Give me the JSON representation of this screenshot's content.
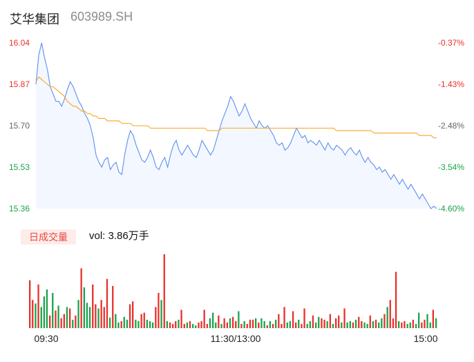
{
  "header": {
    "name": "艾华集团",
    "code": "603989.SH"
  },
  "volume_panel": {
    "tab_label": "日成交量",
    "vol_text": "vol: 3.86万手"
  },
  "colors": {
    "up": "#e8302a",
    "down": "#1aa34a",
    "price_line": "#5b8ff0",
    "avg_line": "#f5a623",
    "area": "#f3f7ff"
  },
  "chart_data": [
    {
      "type": "line",
      "x_tick_labels": [
        "09:30",
        "11:30/13:00",
        "15:00"
      ],
      "y_tick_labels": [
        "16.04",
        "15.87",
        "15.70",
        "15.53",
        "15.36"
      ],
      "y_right_tick_labels": [
        "-0.37%",
        "-1.43%",
        "-2.48%",
        "-3.54%",
        "-4.60%"
      ],
      "ylim": [
        15.36,
        16.04
      ],
      "series": [
        {
          "values": [
            15.87,
            15.99,
            16.04,
            15.98,
            15.93,
            15.86,
            15.83,
            15.8,
            15.8,
            15.78,
            15.81,
            15.85,
            15.88,
            15.86,
            15.83,
            15.8,
            15.78,
            15.75,
            15.73,
            15.7,
            15.65,
            15.58,
            15.55,
            15.53,
            15.56,
            15.57,
            15.52,
            15.54,
            15.55,
            15.51,
            15.5,
            15.58,
            15.64,
            15.68,
            15.66,
            15.62,
            15.59,
            15.56,
            15.55,
            15.57,
            15.6,
            15.57,
            15.53,
            15.52,
            15.55,
            15.57,
            15.53,
            15.58,
            15.62,
            15.64,
            15.6,
            15.58,
            15.6,
            15.62,
            15.6,
            15.58,
            15.57,
            15.6,
            15.64,
            15.62,
            15.6,
            15.58,
            15.6,
            15.64,
            15.68,
            15.72,
            15.75,
            15.78,
            15.82,
            15.8,
            15.77,
            15.74,
            15.76,
            15.79,
            15.76,
            15.73,
            15.71,
            15.69,
            15.72,
            15.7,
            15.69,
            15.7,
            15.68,
            15.66,
            15.63,
            15.62,
            15.63,
            15.6,
            15.61,
            15.63,
            15.66,
            15.69,
            15.67,
            15.65,
            15.66,
            15.63,
            15.64,
            15.63,
            15.62,
            15.64,
            15.62,
            15.6,
            15.63,
            15.61,
            15.6,
            15.62,
            15.61,
            15.6,
            15.58,
            15.6,
            15.61,
            15.59,
            15.58,
            15.6,
            15.57,
            15.55,
            15.57,
            15.55,
            15.54,
            15.52,
            15.53,
            15.51,
            15.52,
            15.5,
            15.48,
            15.5,
            15.48,
            15.46,
            15.48,
            15.46,
            15.44,
            15.46,
            15.44,
            15.42,
            15.4,
            15.42,
            15.4,
            15.38,
            15.36,
            15.37,
            15.36
          ]
        },
        {
          "values": [
            15.88,
            15.9,
            15.89,
            15.88,
            15.87,
            15.86,
            15.86,
            15.85,
            15.84,
            15.83,
            15.82,
            15.8,
            15.79,
            15.78,
            15.78,
            15.77,
            15.76,
            15.76,
            15.75,
            15.75,
            15.74,
            15.74,
            15.73,
            15.73,
            15.73,
            15.72,
            15.72,
            15.72,
            15.72,
            15.72,
            15.71,
            15.71,
            15.71,
            15.71,
            15.7,
            15.7,
            15.7,
            15.7,
            15.7,
            15.7,
            15.69,
            15.69,
            15.69,
            15.69,
            15.69,
            15.69,
            15.69,
            15.69,
            15.69,
            15.69,
            15.69,
            15.69,
            15.69,
            15.69,
            15.69,
            15.69,
            15.69,
            15.69,
            15.69,
            15.69,
            15.68,
            15.68,
            15.68,
            15.68,
            15.68,
            15.69,
            15.69,
            15.69,
            15.69,
            15.69,
            15.69,
            15.69,
            15.69,
            15.69,
            15.69,
            15.69,
            15.69,
            15.69,
            15.69,
            15.69,
            15.69,
            15.69,
            15.69,
            15.69,
            15.69,
            15.69,
            15.69,
            15.69,
            15.69,
            15.69,
            15.69,
            15.69,
            15.69,
            15.69,
            15.69,
            15.69,
            15.69,
            15.69,
            15.69,
            15.69,
            15.69,
            15.69,
            15.69,
            15.69,
            15.69,
            15.68,
            15.68,
            15.68,
            15.68,
            15.68,
            15.68,
            15.68,
            15.68,
            15.68,
            15.68,
            15.68,
            15.68,
            15.68,
            15.67,
            15.67,
            15.67,
            15.67,
            15.67,
            15.67,
            15.67,
            15.67,
            15.67,
            15.67,
            15.67,
            15.67,
            15.67,
            15.67,
            15.67,
            15.67,
            15.66,
            15.66,
            15.66,
            15.66,
            15.66,
            15.65,
            15.65
          ]
        }
      ]
    },
    {
      "type": "bar",
      "up_flags": [
        1,
        1,
        0,
        1,
        0,
        0,
        0,
        1,
        0,
        1,
        0,
        1,
        1,
        0,
        1,
        0,
        1,
        0,
        1,
        0,
        0,
        0,
        1,
        1,
        0,
        1,
        1,
        1,
        0,
        1,
        0,
        0,
        1,
        0,
        0,
        1,
        1,
        0,
        0,
        1,
        1,
        0,
        0,
        0,
        1,
        1,
        0,
        1,
        0,
        1,
        1,
        1,
        0,
        1,
        1,
        0,
        1,
        0,
        0,
        1,
        1,
        1,
        1,
        0,
        0,
        0,
        1,
        0,
        1,
        1,
        0,
        1,
        1,
        0,
        1,
        0,
        1,
        1,
        1,
        0,
        1,
        0,
        0,
        1,
        0,
        1,
        0,
        1,
        1,
        1,
        0,
        0,
        1,
        1,
        0,
        1,
        1,
        0,
        0,
        1,
        0,
        0,
        1,
        1,
        0,
        1,
        0,
        1,
        1,
        0,
        1,
        0,
        0,
        1,
        0,
        1,
        1,
        0,
        0,
        1,
        0,
        1,
        0,
        0,
        1,
        0,
        1,
        1,
        1,
        0,
        1,
        1,
        0,
        0,
        1,
        0,
        0,
        1,
        1,
        0,
        0,
        1,
        0
      ],
      "values": [
        68,
        40,
        35,
        62,
        30,
        45,
        55,
        18,
        50,
        25,
        32,
        14,
        20,
        30,
        28,
        12,
        18,
        40,
        85,
        58,
        36,
        30,
        62,
        34,
        28,
        40,
        30,
        70,
        15,
        60,
        20,
        8,
        10,
        16,
        12,
        34,
        38,
        12,
        10,
        20,
        22,
        12,
        10,
        8,
        30,
        50,
        40,
        105,
        10,
        8,
        6,
        10,
        12,
        26,
        6,
        8,
        10,
        6,
        4,
        8,
        10,
        26,
        6,
        14,
        22,
        8,
        18,
        6,
        14,
        8,
        14,
        16,
        10,
        24,
        6,
        10,
        6,
        12,
        12,
        14,
        8,
        14,
        10,
        4,
        10,
        6,
        12,
        20,
        6,
        30,
        8,
        10,
        24,
        8,
        12,
        6,
        28,
        6,
        10,
        18,
        8,
        16,
        14,
        12,
        10,
        20,
        6,
        14,
        18,
        8,
        28,
        8,
        10,
        8,
        12,
        16,
        10,
        8,
        6,
        18,
        10,
        12,
        8,
        14,
        20,
        30,
        40,
        14,
        80,
        10,
        8,
        10,
        6,
        8,
        12,
        6,
        22,
        8,
        12,
        20,
        8,
        26,
        14
      ]
    }
  ]
}
